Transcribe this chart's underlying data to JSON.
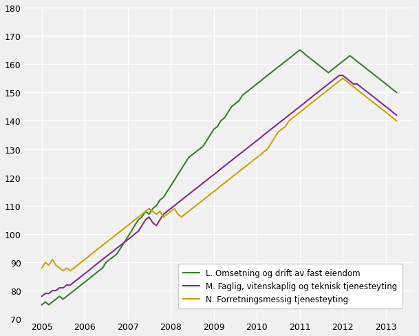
{
  "title": "",
  "legend_entries": [
    "L. Omsetning og drift av fast eiendom",
    "M. Faglig, vitenskaplig og teknisk tjenesteyting",
    "N. Forretningsmessig tjenesteyting"
  ],
  "colors": [
    "#3a7d2c",
    "#7b2d8b",
    "#c8a400"
  ],
  "line_width": 1.5,
  "ylim": [
    70,
    180
  ],
  "yticks": [
    70,
    80,
    90,
    100,
    110,
    120,
    130,
    140,
    150,
    160,
    170,
    180
  ],
  "background_color": "#f0f0f0",
  "plot_bg_color": "#f0f0f0",
  "series_L": [
    75,
    76,
    75,
    76,
    77,
    78,
    77,
    78,
    79,
    80,
    81,
    82,
    83,
    84,
    85,
    86,
    87,
    88,
    90,
    91,
    92,
    93,
    95,
    97,
    99,
    101,
    103,
    105,
    106,
    108,
    107,
    109,
    110,
    112,
    113,
    115,
    117,
    119,
    121,
    123,
    125,
    127,
    128,
    129,
    130,
    131,
    133,
    135,
    137,
    138,
    140,
    141,
    143,
    145,
    146,
    147,
    149,
    150,
    151,
    152,
    153,
    154,
    155,
    156,
    157,
    158,
    159,
    160,
    161,
    162,
    163,
    164,
    165,
    164,
    163,
    162,
    161,
    160,
    159,
    158,
    157,
    158,
    159,
    160,
    161,
    162,
    163,
    162,
    161,
    160,
    159,
    158,
    157,
    156,
    155,
    154,
    153,
    152,
    151,
    150
  ],
  "series_M": [
    78,
    79,
    79,
    80,
    80,
    81,
    81,
    82,
    82,
    83,
    84,
    85,
    86,
    87,
    88,
    89,
    90,
    91,
    92,
    93,
    94,
    95,
    96,
    97,
    98,
    99,
    100,
    101,
    103,
    105,
    106,
    104,
    103,
    105,
    107,
    108,
    109,
    110,
    111,
    112,
    113,
    114,
    115,
    116,
    117,
    118,
    119,
    120,
    121,
    122,
    123,
    124,
    125,
    126,
    127,
    128,
    129,
    130,
    131,
    132,
    133,
    134,
    135,
    136,
    137,
    138,
    139,
    140,
    141,
    142,
    143,
    144,
    145,
    146,
    147,
    148,
    149,
    150,
    151,
    152,
    153,
    154,
    155,
    156,
    156,
    155,
    154,
    153,
    153,
    152,
    151,
    150,
    149,
    148,
    147,
    146,
    145,
    144,
    143,
    142
  ],
  "series_N": [
    88,
    90,
    89,
    91,
    89,
    88,
    87,
    88,
    87,
    88,
    89,
    90,
    91,
    92,
    93,
    94,
    95,
    96,
    97,
    98,
    99,
    100,
    101,
    102,
    103,
    104,
    105,
    106,
    107,
    108,
    109,
    108,
    107,
    108,
    106,
    107,
    108,
    109,
    107,
    106,
    107,
    108,
    109,
    110,
    111,
    112,
    113,
    114,
    115,
    116,
    117,
    118,
    119,
    120,
    121,
    122,
    123,
    124,
    125,
    126,
    127,
    128,
    129,
    130,
    132,
    134,
    136,
    137,
    138,
    140,
    141,
    142,
    143,
    144,
    145,
    146,
    147,
    148,
    149,
    150,
    151,
    152,
    153,
    154,
    155,
    154,
    153,
    152,
    151,
    150,
    149,
    148,
    147,
    146,
    145,
    144,
    143,
    142,
    141,
    140
  ]
}
